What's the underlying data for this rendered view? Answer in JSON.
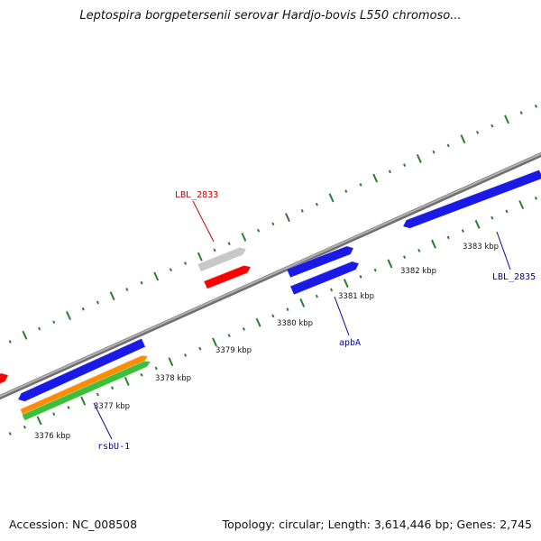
{
  "title": "Leptospira borgpetersenii serovar Hardjo-bovis L550 chromoso...",
  "footer": {
    "accession": "Accession: NC_008508",
    "topology": "Topology: circular; Length: 3,614,446 bp; Genes: 2,745"
  },
  "colors": {
    "backbone": "#8a8a8a",
    "tick": "#2e7d2e",
    "blue_gene": "#1a1ae6",
    "red_gene": "#ff0000",
    "gray_gene": "#c8c8c8",
    "orange_gene": "#ff8c00",
    "green_gene": "#3cbf3c",
    "label_red": "#cc0000",
    "label_blue": "#0000aa"
  },
  "ticks": [
    {
      "label": "3376 kbp"
    },
    {
      "label": "3377 kbp"
    },
    {
      "label": "3378 kbp"
    },
    {
      "label": "3379 kbp"
    },
    {
      "label": "3380 kbp"
    },
    {
      "label": "3381 kbp"
    },
    {
      "label": "3382 kbp"
    },
    {
      "label": "3383 kbp"
    }
  ],
  "gene_labels": [
    {
      "text": "LBL_2833",
      "color": "label_red"
    },
    {
      "text": "apbA",
      "color": "label_blue"
    },
    {
      "text": "LBL_2835",
      "color": "label_blue"
    },
    {
      "text": "rsbU-1",
      "color": "label_blue"
    }
  ]
}
